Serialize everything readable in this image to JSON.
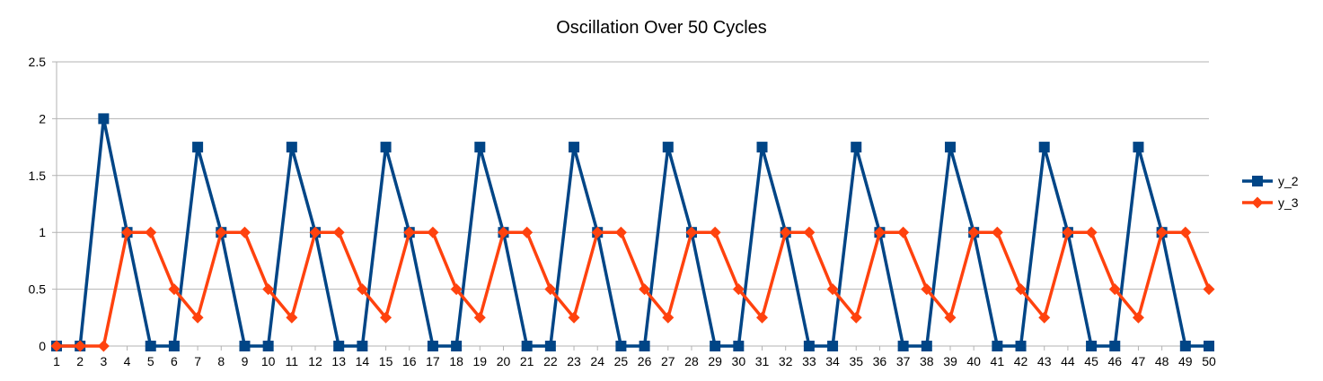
{
  "chart_data": {
    "type": "line",
    "title": "Oscillation Over 50 Cycles",
    "xlabel": "",
    "ylabel": "",
    "x": [
      1,
      2,
      3,
      4,
      5,
      6,
      7,
      8,
      9,
      10,
      11,
      12,
      13,
      14,
      15,
      16,
      17,
      18,
      19,
      20,
      21,
      22,
      23,
      24,
      25,
      26,
      27,
      28,
      29,
      30,
      31,
      32,
      33,
      34,
      35,
      36,
      37,
      38,
      39,
      40,
      41,
      42,
      43,
      44,
      45,
      46,
      47,
      48,
      49,
      50
    ],
    "ylim": [
      0,
      2.5
    ],
    "yticks": [
      "0",
      "0.5",
      "1",
      "1.5",
      "2",
      "2.5"
    ],
    "grid": "horizontal",
    "legend_position": "right",
    "series": [
      {
        "name": "y_2",
        "color": "#004586",
        "marker": "square",
        "values": [
          0,
          0,
          2,
          1,
          0,
          0,
          1.75,
          1,
          0,
          0,
          1.75,
          1,
          0,
          0,
          1.75,
          1,
          0,
          0,
          1.75,
          1,
          0,
          0,
          1.75,
          1,
          0,
          0,
          1.75,
          1,
          0,
          0,
          1.75,
          1,
          0,
          0,
          1.75,
          1,
          0,
          0,
          1.75,
          1,
          0,
          0,
          1.75,
          1,
          0,
          0,
          1.75,
          1,
          0,
          0
        ]
      },
      {
        "name": "y_3",
        "color": "#ff420e",
        "marker": "diamond",
        "values": [
          0,
          0,
          0,
          1,
          1,
          0.5,
          0.25,
          1,
          1,
          0.5,
          0.25,
          1,
          1,
          0.5,
          0.25,
          1,
          1,
          0.5,
          0.25,
          1,
          1,
          0.5,
          0.25,
          1,
          1,
          0.5,
          0.25,
          1,
          1,
          0.5,
          0.25,
          1,
          1,
          0.5,
          0.25,
          1,
          1,
          0.5,
          0.25,
          1,
          1,
          0.5,
          0.25,
          1,
          1,
          0.5,
          0.25,
          1,
          1,
          0.5
        ]
      }
    ]
  }
}
